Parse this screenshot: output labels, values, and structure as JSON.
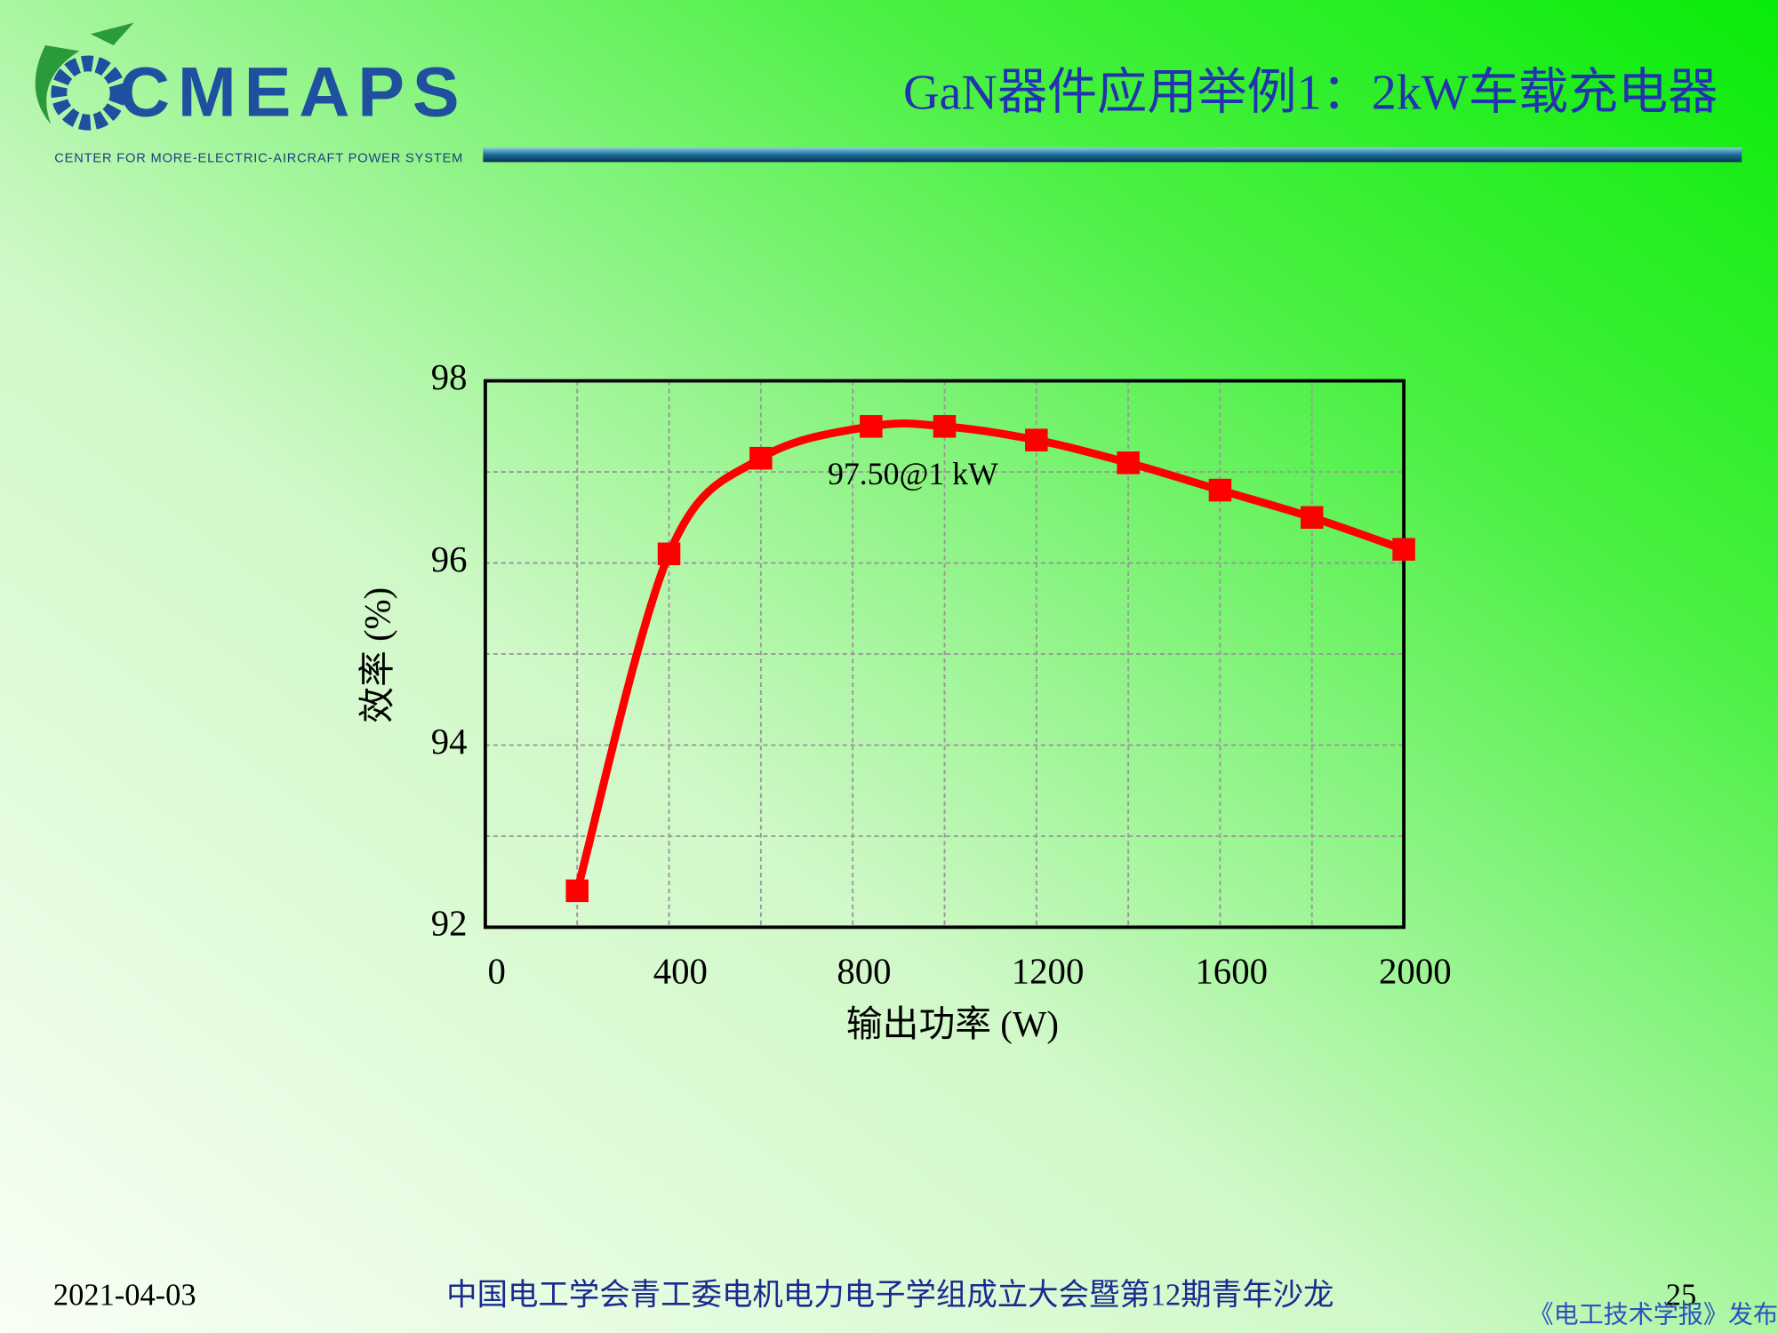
{
  "header": {
    "logo": "CMEAPS",
    "logo_subtitle": "CENTER FOR  MORE-ELECTRIC-AIRCRAFT POWER SYSTEM",
    "title": "GaN器件应用举例1：2kW车载充电器"
  },
  "chart_data": {
    "type": "line",
    "xlabel": "输出功率 (W)",
    "ylabel": "效率 (%)",
    "x": [
      200,
      400,
      600,
      840,
      1000,
      1200,
      1400,
      1600,
      1800,
      2000
    ],
    "series": [
      {
        "color": "#ff0000",
        "values": [
          92.4,
          96.1,
          97.15,
          97.5,
          97.5,
          97.35,
          97.1,
          96.8,
          96.5,
          96.15
        ]
      }
    ],
    "annotation": "97.50@1 kW",
    "xlim": [
      0,
      2000
    ],
    "xticks": [
      0,
      400,
      800,
      1200,
      1600,
      2000
    ],
    "minor_xticks": [
      200,
      600,
      1000,
      1400,
      1800
    ],
    "ylim": [
      92,
      98
    ],
    "yticks": [
      92,
      94,
      96,
      98
    ],
    "minor_yticks": [
      93,
      95,
      97
    ],
    "grid": true,
    "marker": "square"
  },
  "footer": {
    "date": "2021-04-03",
    "event": "中国电工学会青工委电机电力电子学组成立大会暨第12期青年沙龙",
    "page": "25",
    "publisher": "《电工技术学报》发布"
  }
}
